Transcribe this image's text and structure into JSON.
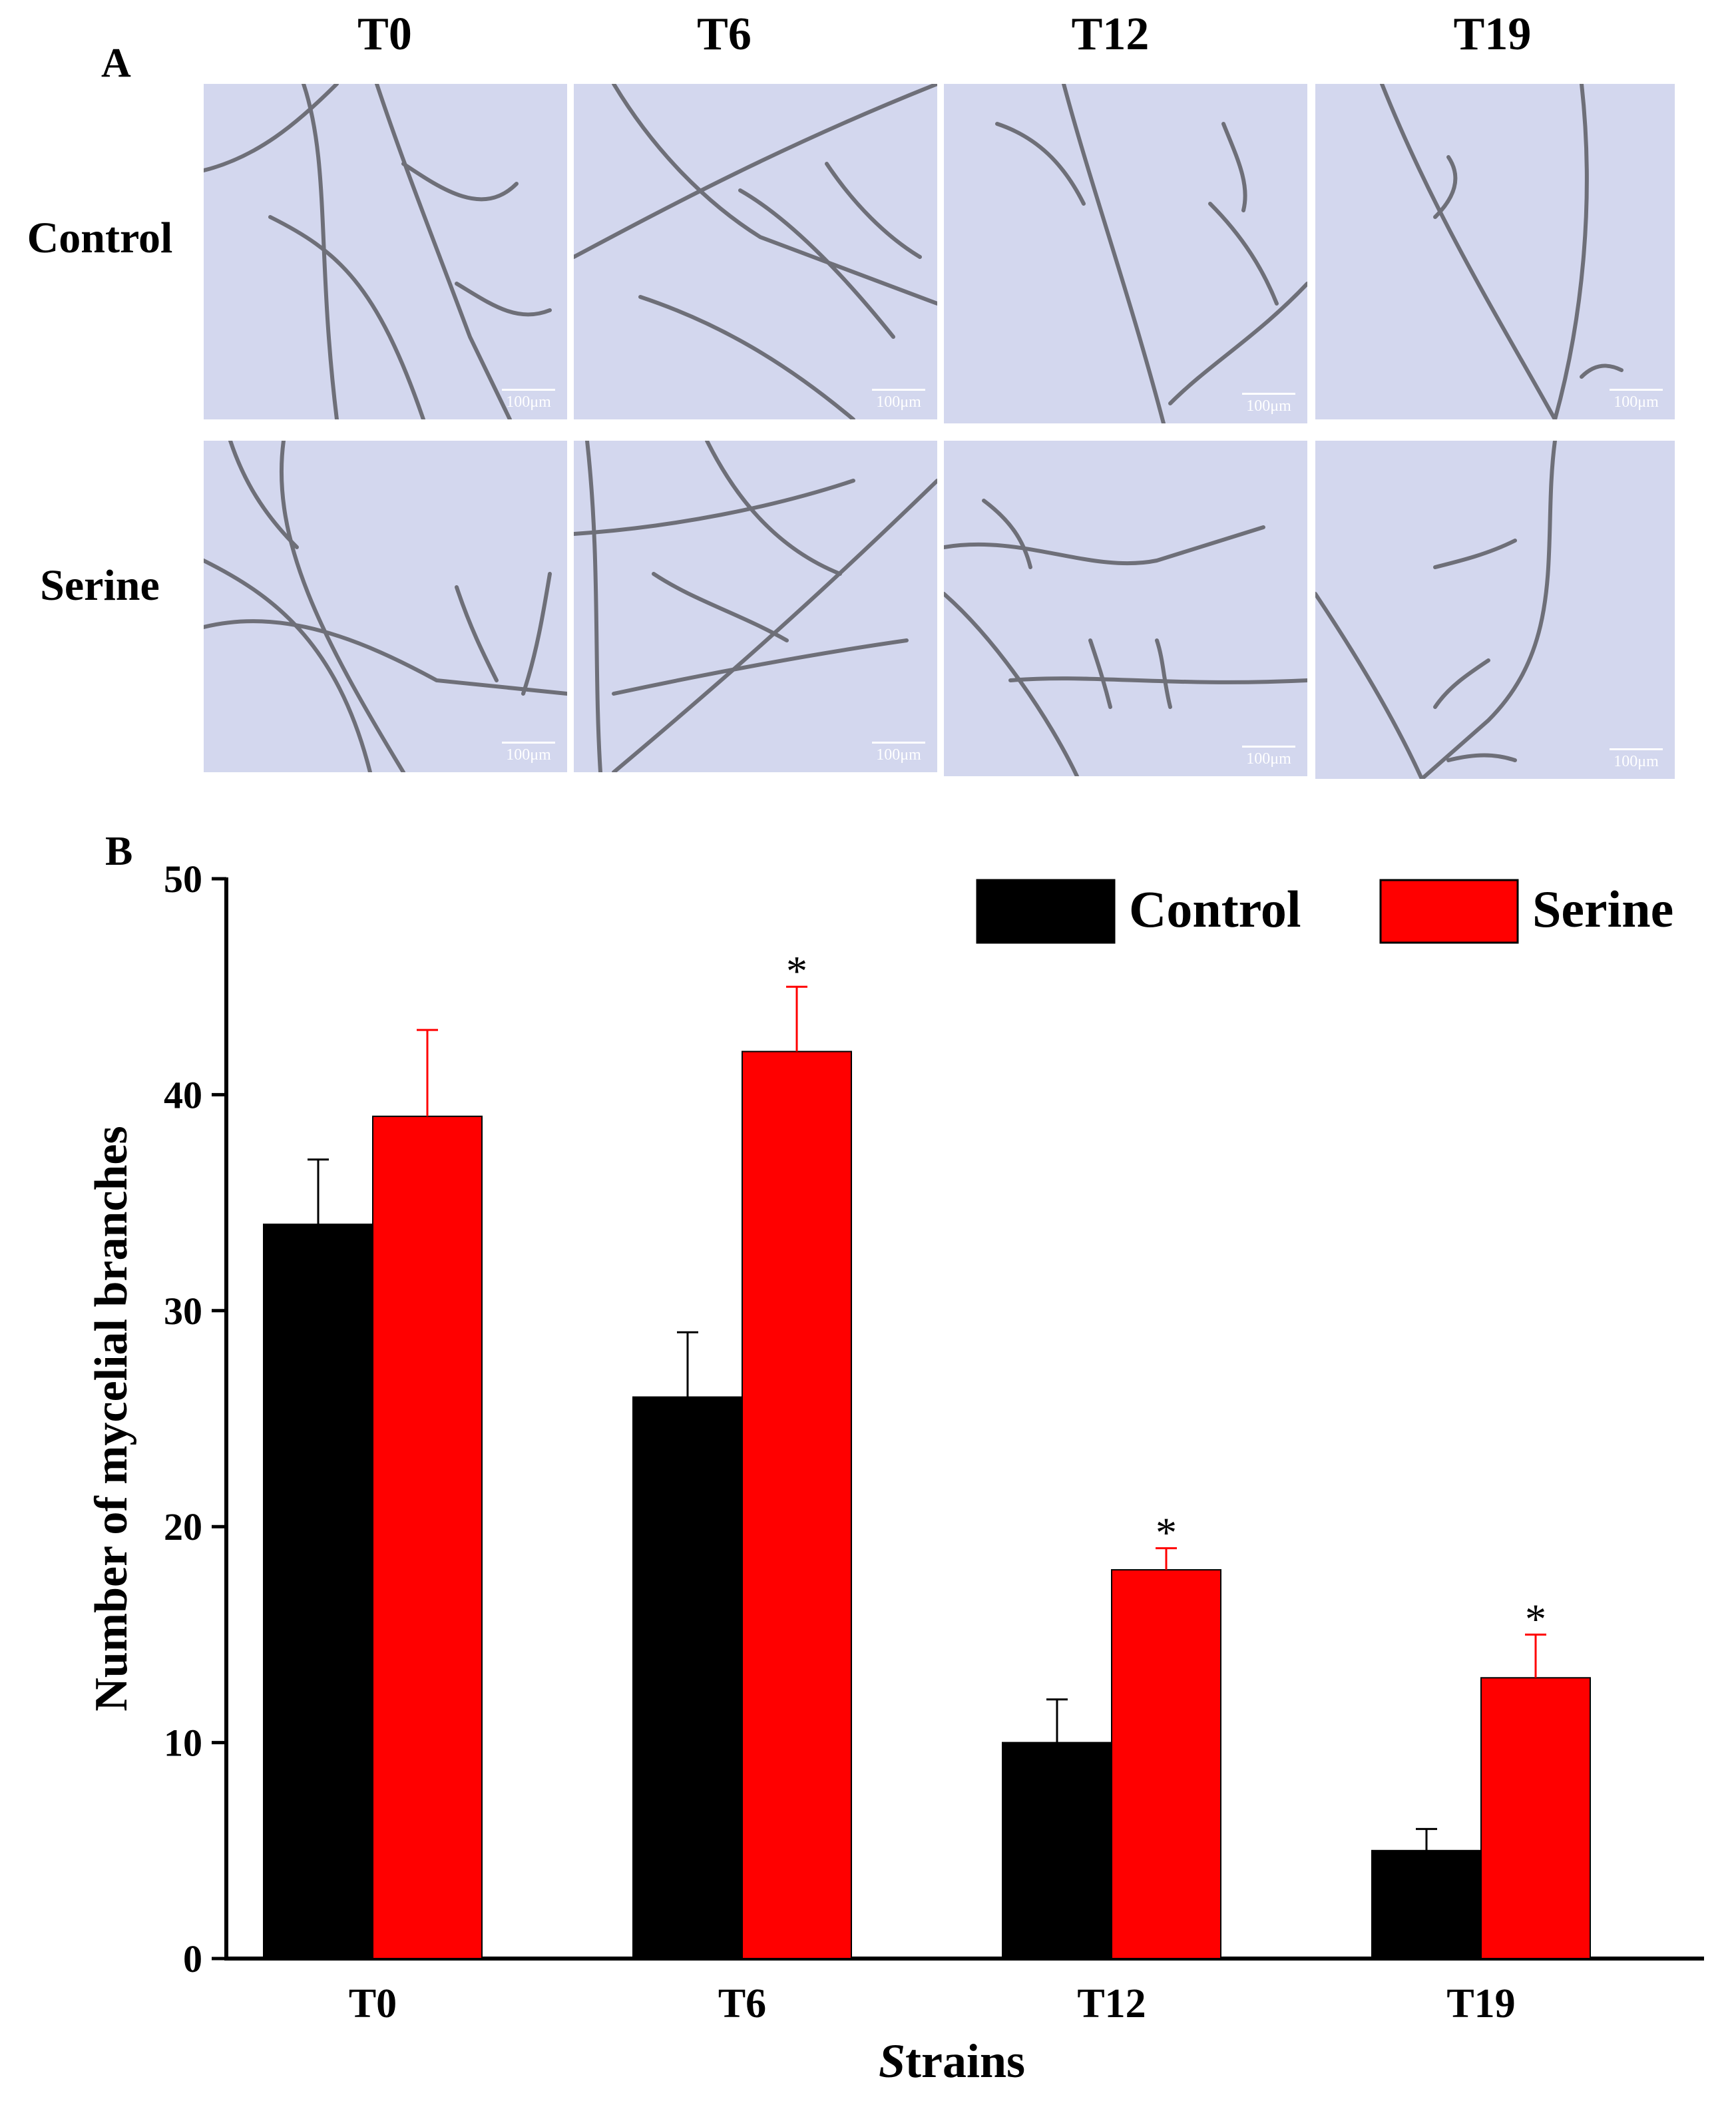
{
  "panel_a": {
    "label": "A",
    "columns": [
      "T0",
      "T6",
      "T12",
      "T19"
    ],
    "rows": [
      "Control",
      "Serine"
    ],
    "scale_bar": "100μm"
  },
  "panel_b": {
    "label": "B"
  },
  "chart_data": {
    "type": "bar",
    "categories": [
      "T0",
      "T6",
      "T12",
      "T19"
    ],
    "series": [
      {
        "name": "Control",
        "color": "#000000",
        "values": [
          34,
          26,
          10,
          5
        ],
        "errors": [
          3,
          3,
          2,
          1
        ],
        "significant": [
          false,
          false,
          false,
          false
        ]
      },
      {
        "name": "Serine",
        "color": "#ff0000",
        "values": [
          39,
          42,
          18,
          13
        ],
        "errors": [
          4,
          3,
          1,
          2
        ],
        "significant": [
          false,
          true,
          true,
          true
        ]
      }
    ],
    "significance_marker": "*",
    "xlabel_prefix": "S",
    "xlabel_rest": "trains",
    "ylabel": "Number of mycelial branches",
    "ylim": [
      0,
      50
    ],
    "yticks": [
      0,
      10,
      20,
      30,
      40,
      50
    ],
    "legend_position": "top-right",
    "grid": false
  }
}
